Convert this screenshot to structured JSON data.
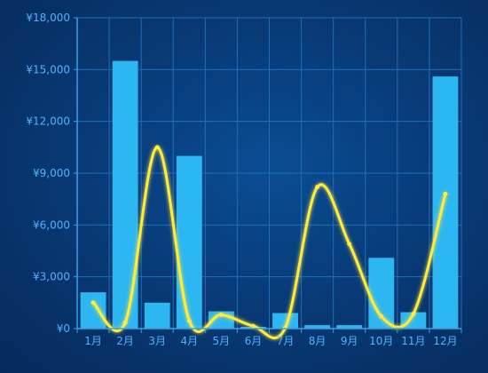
{
  "chart_data": {
    "type": "bar",
    "categories": [
      "1月",
      "2月",
      "3月",
      "4月",
      "5月",
      "6月",
      "7月",
      "8月",
      "9月",
      "10月",
      "11月",
      "12月"
    ],
    "series": [
      {
        "type": "bar",
        "values": [
          2100,
          15500,
          1500,
          10000,
          1000,
          100,
          900,
          200,
          200,
          4100,
          950,
          14600
        ]
      },
      {
        "type": "line",
        "smooth": true,
        "values": [
          1500,
          350,
          10500,
          450,
          800,
          150,
          50,
          8200,
          4900,
          700,
          850,
          7800
        ]
      }
    ],
    "y_ticks": [
      "¥0",
      "¥3,000",
      "¥6,000",
      "¥9,000",
      "¥12,000",
      "¥15,000",
      "¥18,000"
    ],
    "ylim": [
      0,
      18000
    ],
    "grid": true,
    "colors": {
      "bar": "#2db7f2",
      "line": "#ffeb3b",
      "grid": "#1f6fb8",
      "axis": "#3aa0e8",
      "tick": "#4fb3ff"
    }
  }
}
